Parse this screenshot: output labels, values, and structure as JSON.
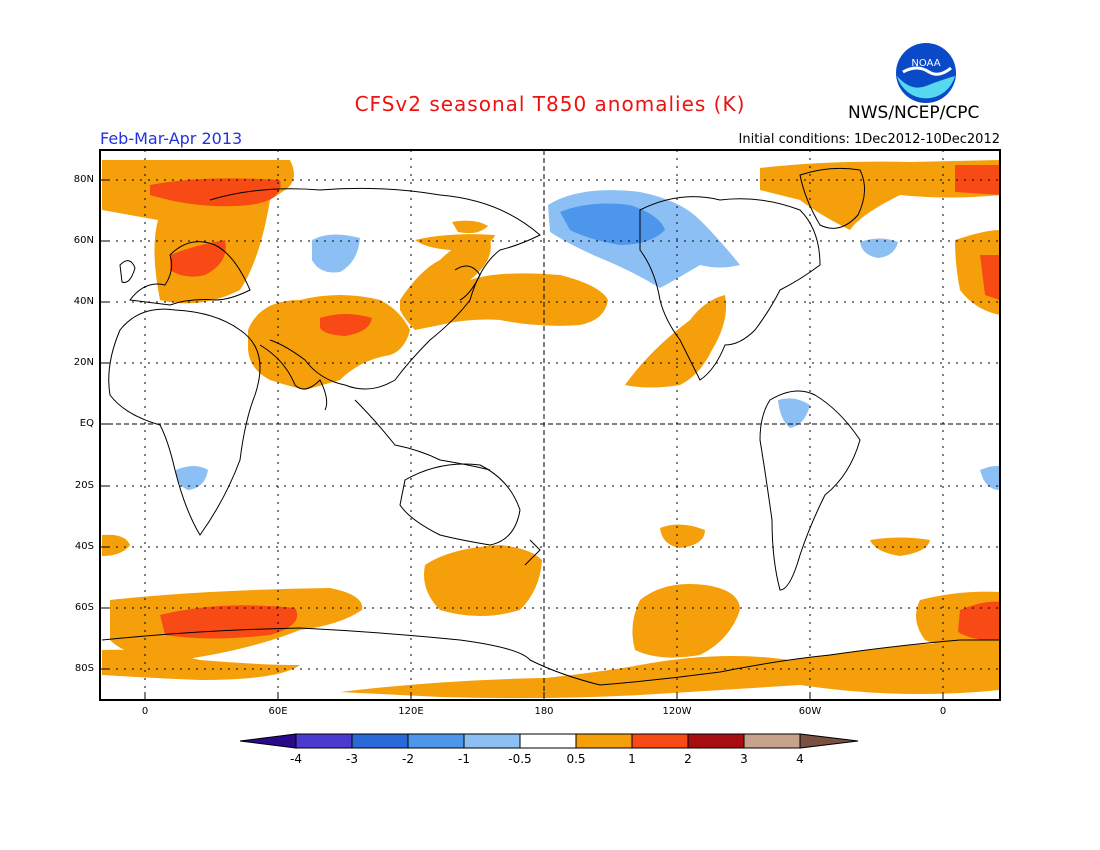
{
  "title": "CFSv2 seasonal T850 anomalies (K)",
  "agency": "NWS/NCEP/CPC",
  "logo_text": "NOAA",
  "season": "Feb-Mar-Apr 2013",
  "initial_conditions": "Initial conditions: 1Dec2012-10Dec2012",
  "lat_labels": [
    "80N",
    "60N",
    "40N",
    "20N",
    "EQ",
    "20S",
    "40S",
    "60S",
    "80S"
  ],
  "lon_labels": [
    "0",
    "60E",
    "120E",
    "180",
    "120W",
    "60W",
    "0"
  ],
  "colorbar": {
    "labels": [
      "-4",
      "-3",
      "-2",
      "-1",
      "-0.5",
      "0.5",
      "1",
      "2",
      "3",
      "4"
    ],
    "colors": [
      "#2a0a8a",
      "#4a3ad0",
      "#2a6ad8",
      "#4c96ec",
      "#8cc0f4",
      "#ffffff",
      "#f5a00a",
      "#f84a14",
      "#a80e10",
      "#c8a28c",
      "#7a5040"
    ]
  },
  "colors": {
    "warm1": "#f5a00a",
    "warm2": "#f84a14",
    "cool1": "#8cc0f4",
    "cool2": "#4c96ec",
    "title": "#ee1111",
    "season": "#2233dd"
  }
}
